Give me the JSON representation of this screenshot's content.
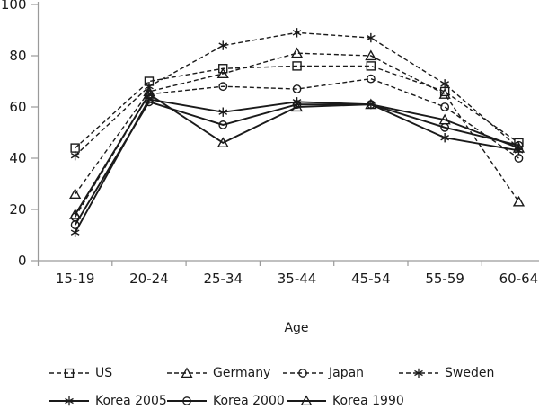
{
  "chart_data": {
    "type": "line",
    "title": "",
    "xlabel": "Age",
    "ylabel": "",
    "ylim": [
      0,
      100
    ],
    "yticks": [
      0,
      20,
      40,
      60,
      80,
      100
    ],
    "grid": false,
    "legend_position": "bottom",
    "categories": [
      "15-19",
      "20-24",
      "25-34",
      "35-44",
      "45-54",
      "55-59",
      "60-64"
    ],
    "series": [
      {
        "name": "US",
        "line": "dashed",
        "marker": "square",
        "values": [
          44,
          70,
          75,
          76,
          76,
          66,
          46
        ]
      },
      {
        "name": "Germany",
        "line": "dashed",
        "marker": "triangle",
        "values": [
          26,
          66,
          73,
          81,
          80,
          65,
          23
        ]
      },
      {
        "name": "Japan",
        "line": "dashed",
        "marker": "circle",
        "values": [
          17,
          65,
          68,
          67,
          71,
          60,
          40
        ]
      },
      {
        "name": "Sweden",
        "line": "dashed",
        "marker": "asterisk",
        "values": [
          41,
          68,
          84,
          89,
          87,
          69,
          44
        ]
      },
      {
        "name": "Korea 2005",
        "line": "solid",
        "marker": "asterisk",
        "values": [
          11,
          63,
          58,
          62,
          61,
          48,
          43
        ]
      },
      {
        "name": "Korea 2000",
        "line": "solid",
        "marker": "circle",
        "values": [
          14,
          62,
          53,
          61,
          61,
          52,
          45
        ]
      },
      {
        "name": "Korea 1990",
        "line": "solid",
        "marker": "triangle",
        "values": [
          18,
          65,
          46,
          60,
          61,
          55,
          44
        ]
      }
    ],
    "colors": {
      "series": "#1a1a1a",
      "axis": "#9a9a9a",
      "text": "#1a1a1a",
      "background": "#ffffff"
    }
  }
}
